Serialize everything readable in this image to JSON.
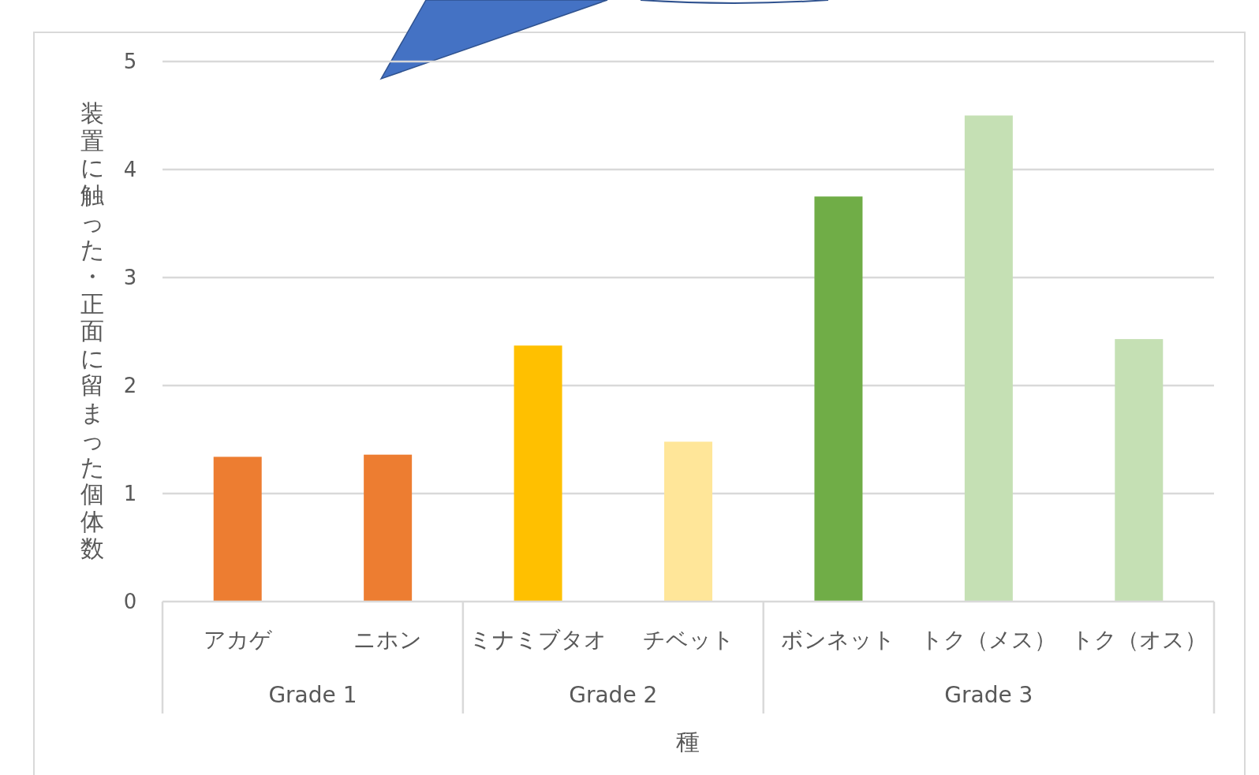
{
  "chart_data": {
    "type": "bar",
    "categories": [
      "アカゲ",
      "ニホン",
      "ミナミブタオ",
      "チベット",
      "ボンネット",
      "トク（メス）",
      "トク（オス）"
    ],
    "values": [
      1.34,
      1.36,
      2.37,
      1.48,
      3.75,
      4.5,
      2.43
    ],
    "colors": [
      "#ed7d31",
      "#ed7d31",
      "#ffc000",
      "#ffe699",
      "#70ad47",
      "#c5e0b4",
      "#c5e0b4"
    ],
    "xlabel": "種",
    "ylabel": "装置に触った・正面に留まった個体数",
    "annotations": [
      "Grade 1",
      "Grade 2",
      "Grade 3"
    ],
    "ylim": [
      0,
      5
    ],
    "yticks": [
      0,
      1,
      2,
      3,
      4,
      5
    ],
    "grid": "y"
  }
}
